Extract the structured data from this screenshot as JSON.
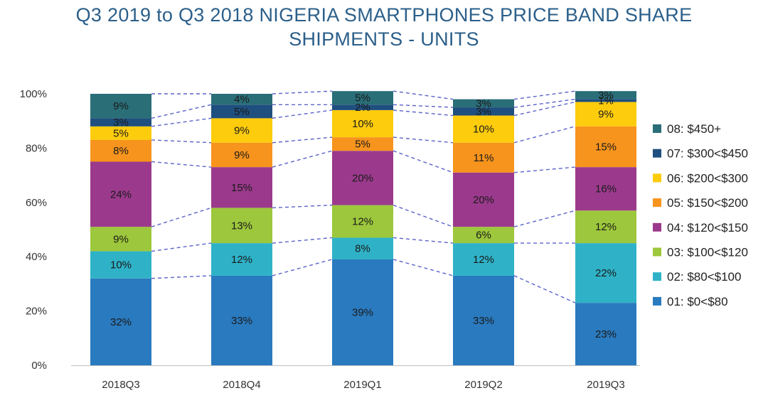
{
  "chart_data": {
    "type": "bar",
    "stacked": true,
    "title_line1": "Q3 2019 to Q3 2018 NIGERIA SMARTPHONES PRICE BAND SHARE",
    "title_line2": "SHIPMENTS - UNITS",
    "categories": [
      "2018Q3",
      "2018Q4",
      "2019Q1",
      "2019Q2",
      "2019Q3"
    ],
    "ylim": [
      0,
      100
    ],
    "yticks": [
      "0%",
      "20%",
      "40%",
      "60%",
      "80%",
      "100%"
    ],
    "legend_position": "right",
    "series": [
      {
        "name": "01: $0<$80",
        "color": "#2a7abf",
        "values": [
          32,
          33,
          39,
          33,
          23
        ],
        "labels": [
          "32%",
          "33%",
          "39%",
          "33%",
          "23%"
        ]
      },
      {
        "name": "02: $80<$100",
        "color": "#2fb2c7",
        "values": [
          10,
          12,
          8,
          12,
          22
        ],
        "labels": [
          "10%",
          "12%",
          "8%",
          "12%",
          "22%"
        ]
      },
      {
        "name": "03: $100<$120",
        "color": "#9dc73c",
        "values": [
          9,
          13,
          12,
          6,
          12
        ],
        "labels": [
          "9%",
          "13%",
          "12%",
          "6%",
          "12%"
        ]
      },
      {
        "name": "04: $120<$150",
        "color": "#9b3a8c",
        "values": [
          24,
          15,
          20,
          20,
          16
        ],
        "labels": [
          "24%",
          "15%",
          "20%",
          "20%",
          "16%"
        ]
      },
      {
        "name": "05: $150<$200",
        "color": "#f7941d",
        "values": [
          8,
          9,
          5,
          11,
          15
        ],
        "labels": [
          "8%",
          "9%",
          "5%",
          "11%",
          "15%"
        ]
      },
      {
        "name": "06: $200<$300",
        "color": "#fdcc0d",
        "values": [
          5,
          9,
          10,
          10,
          9
        ],
        "labels": [
          "5%",
          "9%",
          "10%",
          "10%",
          "9%"
        ]
      },
      {
        "name": "07: $300<$450",
        "color": "#1f4f7e",
        "values": [
          3,
          5,
          2,
          3,
          1
        ],
        "labels": [
          "3%",
          "5%",
          "2%",
          "3%",
          "1%"
        ]
      },
      {
        "name": "08: $450+",
        "color": "#2a6e78",
        "values": [
          9,
          4,
          5,
          3,
          3
        ],
        "labels": [
          "9%",
          "4%",
          "5%",
          "3%",
          "3%"
        ]
      }
    ],
    "connector_color": "#5a63c8"
  }
}
